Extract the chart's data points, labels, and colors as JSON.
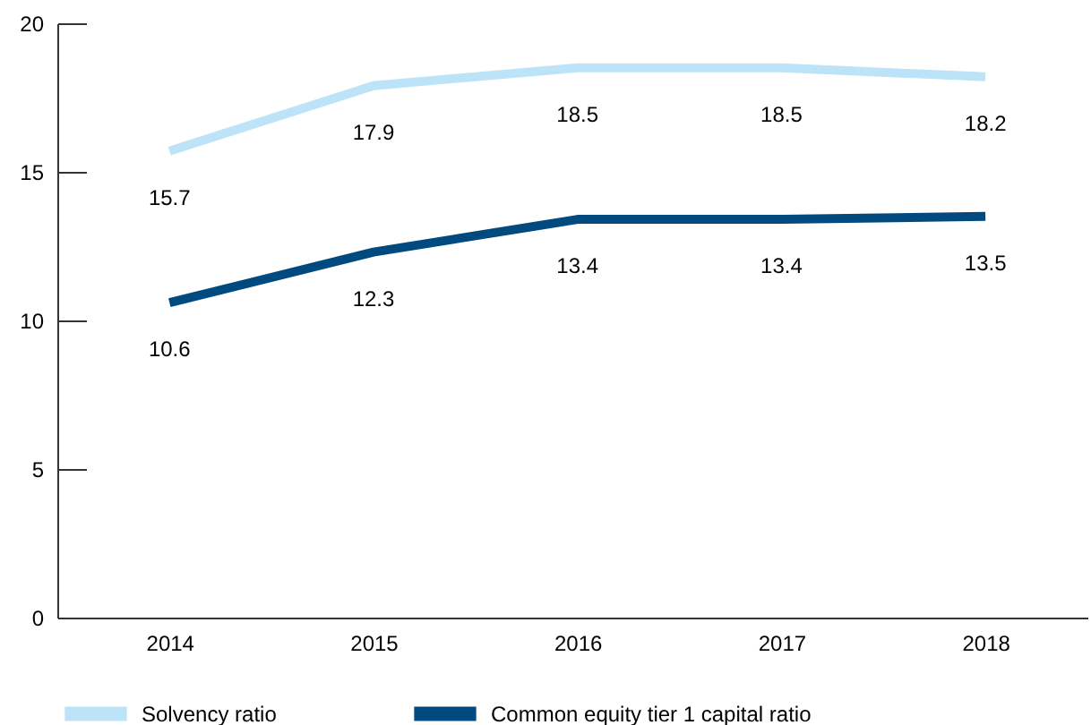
{
  "chart_data": {
    "type": "line",
    "categories": [
      "2014",
      "2015",
      "2016",
      "2017",
      "2018"
    ],
    "series": [
      {
        "name": "Solvency ratio",
        "color": "#bde3f8",
        "values": [
          15.7,
          17.9,
          18.5,
          18.5,
          18.2
        ]
      },
      {
        "name": "Common equity tier 1 capital ratio",
        "color": "#004a7f",
        "values": [
          10.6,
          12.3,
          13.4,
          13.4,
          13.5
        ]
      }
    ],
    "ylim": [
      0,
      20
    ],
    "yticks": [
      0,
      5,
      10,
      15,
      20
    ],
    "grid": false,
    "legend": "bottom",
    "data_labels": true,
    "marker": "none",
    "line_style": "solid"
  }
}
